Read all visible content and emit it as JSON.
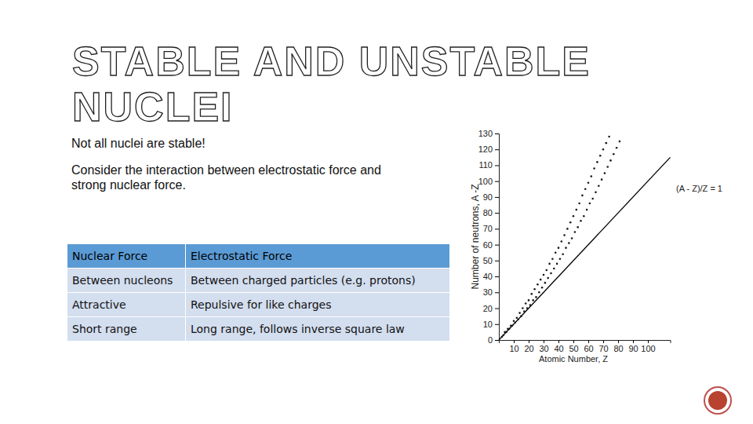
{
  "title": [
    "STABLE AND UNSTABLE",
    "NUCLEI"
  ],
  "paragraphs": [
    "Not all nuclei are stable!",
    "Consider the interaction between electrostatic force and strong nuclear force."
  ],
  "table": {
    "header": [
      "Nuclear Force",
      "Electrostatic Force"
    ],
    "rows": [
      [
        "Between nucleons",
        "Between charged particles (e.g. protons)"
      ],
      [
        "Attractive",
        "Repulsive for like charges"
      ],
      [
        "Short range",
        "Long range, follows inverse square law"
      ]
    ]
  },
  "chart_data": {
    "type": "scatter",
    "x_label": "Atomic Number, Z",
    "y_label": "Number of neutrons, A -Z",
    "color": "#1a1a1a",
    "marker": "circle",
    "x": [
      2,
      4,
      6,
      8,
      10,
      12,
      14,
      16,
      18,
      20,
      22,
      24,
      26,
      28,
      30,
      32,
      34,
      36,
      38,
      40,
      42,
      44,
      46,
      48,
      50,
      52,
      54,
      56,
      58,
      60,
      62,
      64,
      66,
      68,
      70,
      72,
      74,
      3,
      5,
      7,
      9,
      11,
      13,
      15,
      17,
      19,
      21,
      23,
      25,
      27,
      29,
      31,
      33,
      35,
      37,
      39,
      41,
      43,
      45,
      47,
      49,
      51,
      53,
      55,
      57,
      59,
      61,
      63,
      65,
      67,
      69,
      71,
      73,
      75,
      77,
      79,
      81
    ],
    "values": [
      2,
      5,
      7,
      9,
      12,
      14,
      17,
      20,
      23,
      25,
      29,
      32,
      35,
      38,
      41,
      44,
      48,
      51,
      55,
      58,
      62,
      66,
      70,
      74,
      78,
      82,
      86,
      91,
      95,
      99,
      103,
      108,
      112,
      116,
      120,
      124,
      128,
      3,
      5,
      7,
      9,
      11,
      13,
      15,
      18,
      20,
      22,
      25,
      27,
      30,
      33,
      36,
      39,
      42,
      45,
      48,
      51,
      54,
      58,
      61,
      64,
      68,
      71,
      75,
      78,
      82,
      86,
      89,
      93,
      97,
      101,
      105,
      109,
      113,
      117,
      121,
      125
    ],
    "reference_line": {
      "x": [
        0,
        115
      ],
      "values": [
        0,
        115
      ],
      "label": "(A - Z)/Z = 1",
      "color": "#000000"
    },
    "xlim": [
      0,
      115
    ],
    "xticks": [
      10,
      20,
      30,
      40,
      50,
      60,
      70,
      80,
      90,
      100
    ],
    "ylim": [
      0,
      130
    ],
    "yticks": [
      0,
      10,
      20,
      30,
      40,
      50,
      60,
      70,
      80,
      90,
      100,
      110,
      120,
      130
    ],
    "grid": false
  }
}
